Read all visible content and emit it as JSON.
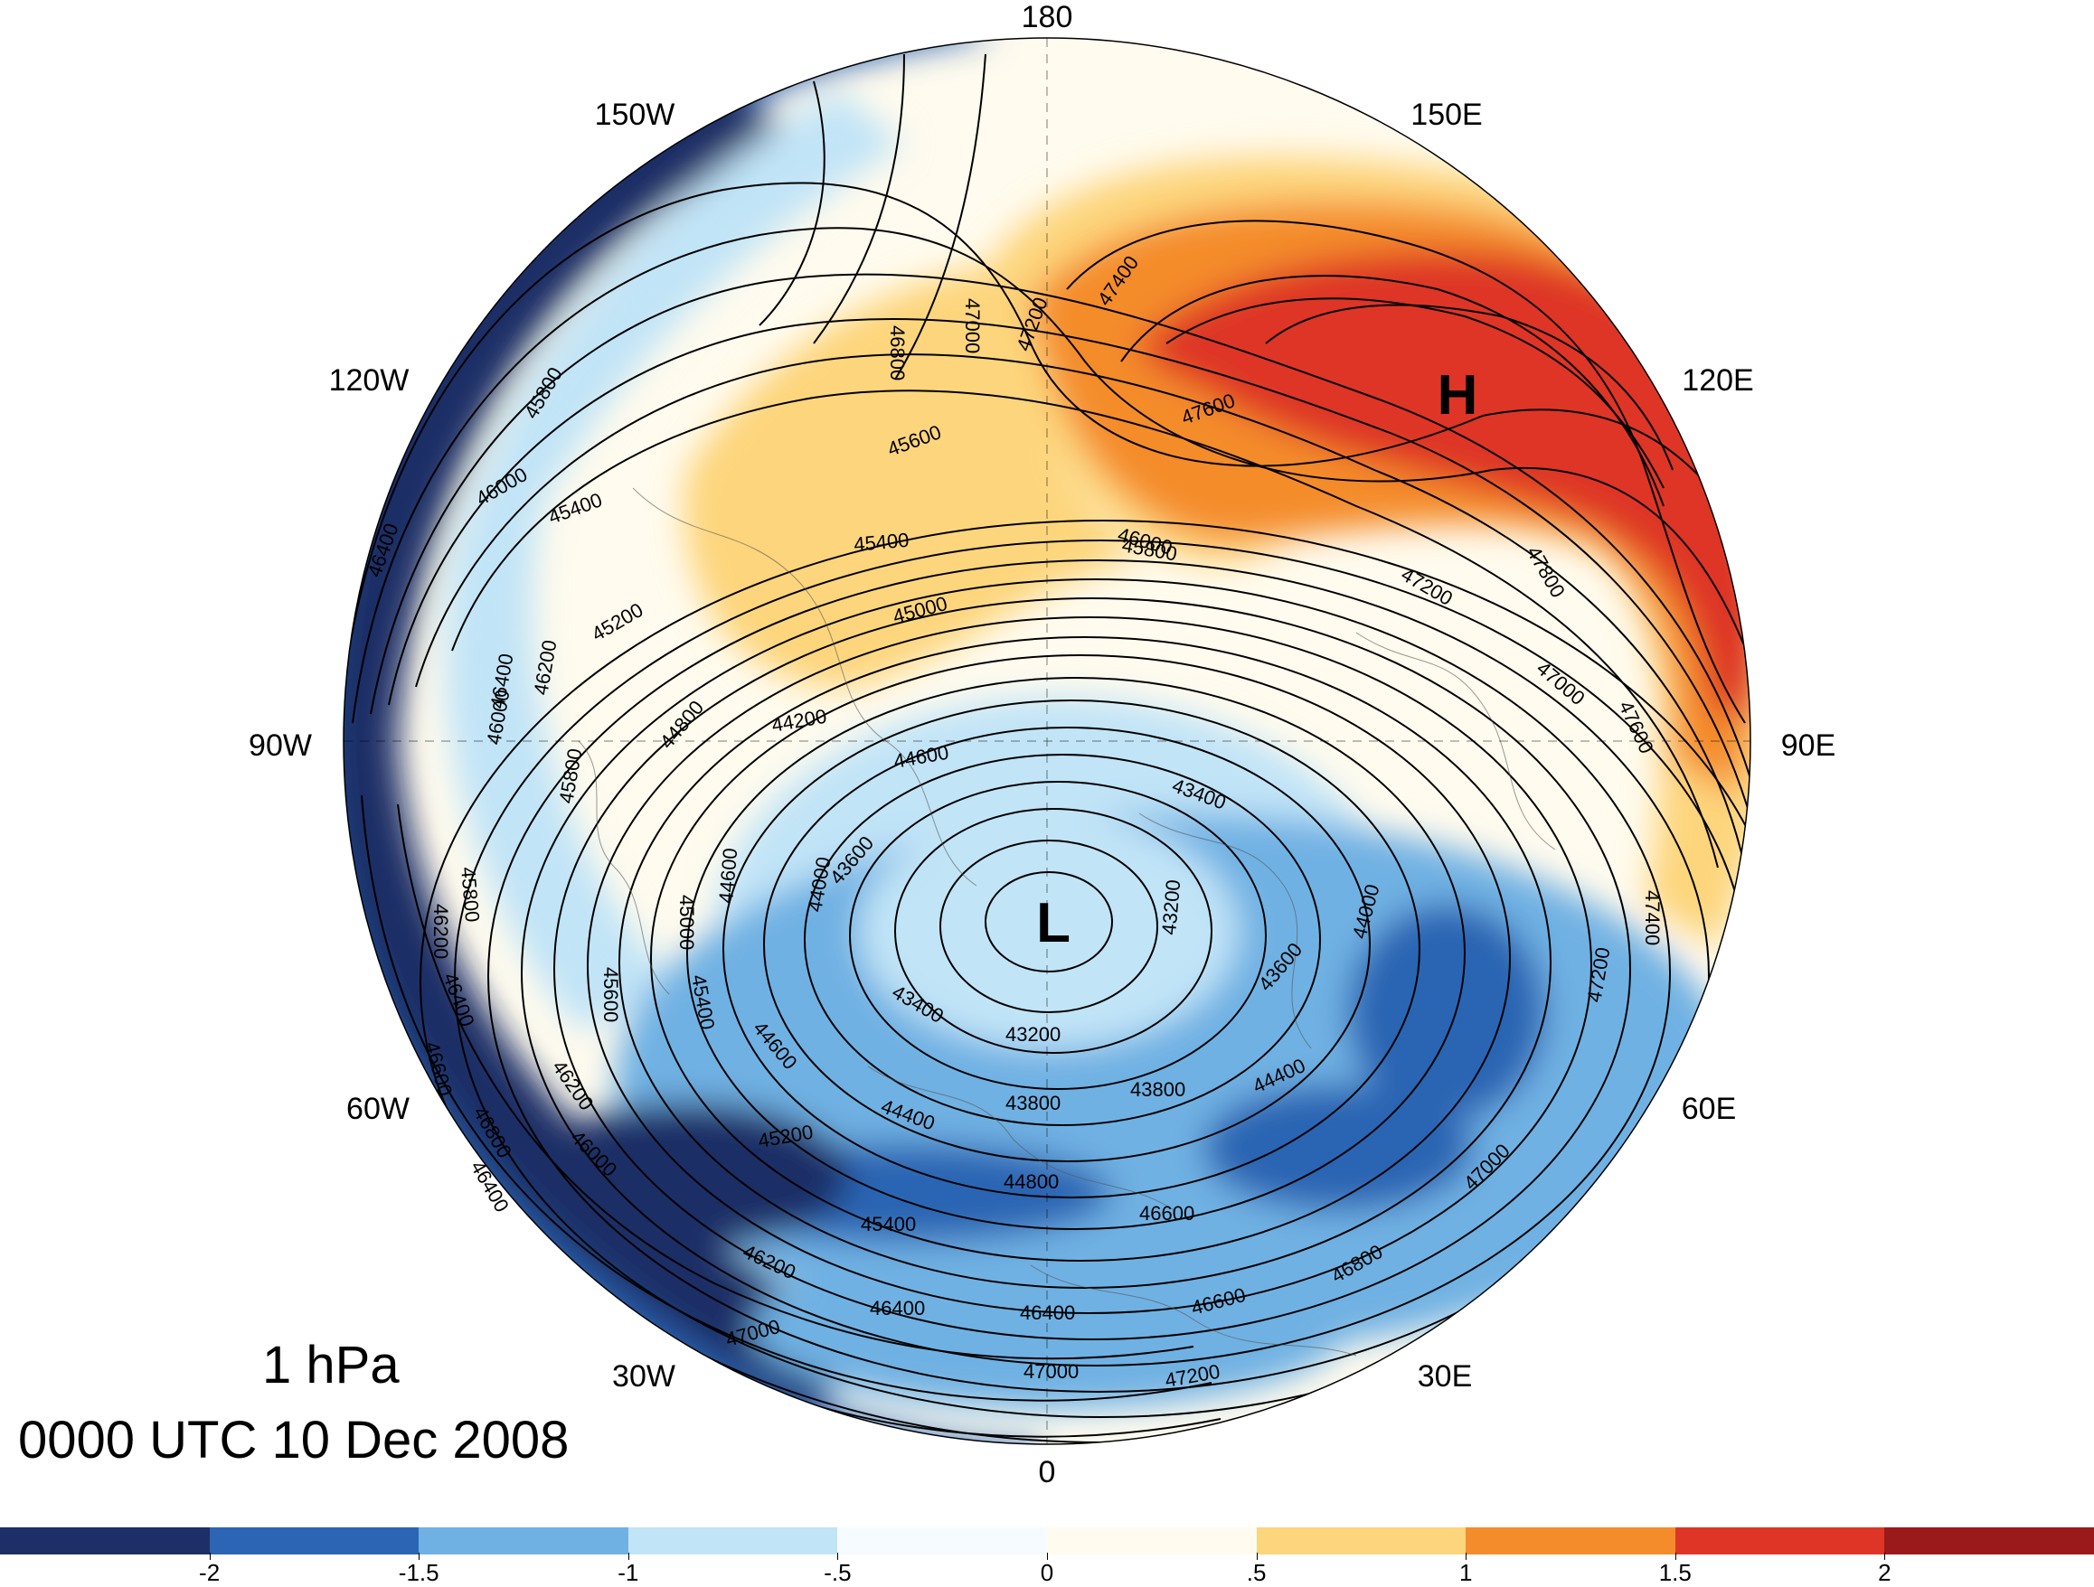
{
  "title": {
    "level": "1 hPa",
    "time": "0000 UTC 10 Dec 2008"
  },
  "map": {
    "projection": "north polar stereographic",
    "longitude_labels": [
      "180",
      "150E",
      "120E",
      "90E",
      "60E",
      "30E",
      "0",
      "30W",
      "60W",
      "90W",
      "120W",
      "150W"
    ],
    "centers": [
      {
        "name": "low-center",
        "symbol": "L"
      },
      {
        "name": "high-center",
        "symbol": "H"
      }
    ],
    "contour_labels": [
      "46800",
      "47000",
      "47200",
      "47400",
      "47600",
      "47800",
      "47200",
      "47000",
      "47600",
      "47400",
      "47200",
      "47000",
      "46800",
      "46600",
      "46400",
      "47000",
      "47200",
      "47000",
      "46400",
      "46200",
      "45400",
      "45200",
      "44800",
      "44400",
      "44600",
      "43800",
      "43800",
      "43200",
      "43400",
      "43600",
      "44000",
      "44400",
      "43200",
      "43400",
      "43600",
      "44000",
      "44600",
      "45000",
      "45400",
      "45600",
      "45800",
      "46000",
      "46200",
      "46400",
      "46800",
      "46200",
      "46400",
      "46000",
      "45800",
      "45400",
      "45200",
      "44800",
      "44200",
      "44600",
      "45000",
      "45400",
      "45800",
      "45600",
      "46000",
      "46200",
      "46400",
      "46600",
      "46000",
      "45800",
      "46400",
      "46600"
    ]
  },
  "colorbar": {
    "colors": [
      "#1d2f66",
      "#2c65b3",
      "#6fb1e3",
      "#c1e4f7",
      "#f5fbff",
      "#fffbee",
      "#fdd57c",
      "#f48c2c",
      "#de3527",
      "#9a1a1c"
    ],
    "labels": [
      "-2",
      "-1.5",
      "-1",
      "-.5",
      "0",
      ".5",
      "1",
      "1.5",
      "2"
    ]
  }
}
